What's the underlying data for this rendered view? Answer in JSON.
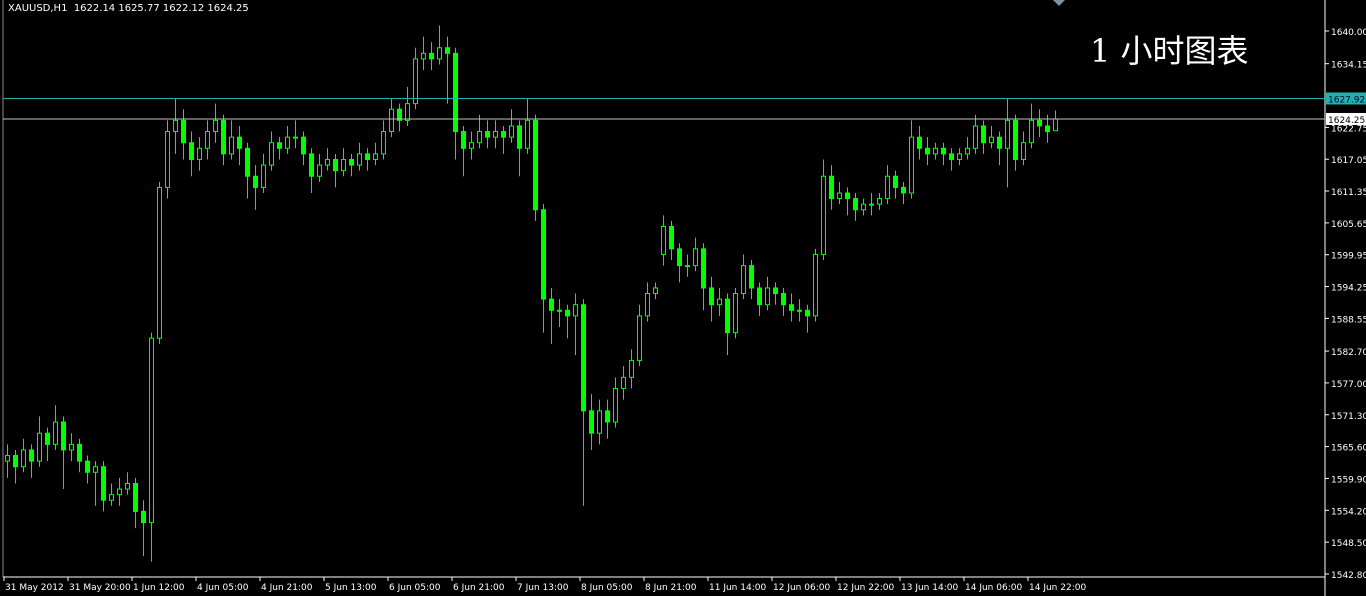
{
  "header": {
    "symbol": "XAUUSD,H1",
    "ohlc_text": "1622.14 1625.77 1622.12 1624.25"
  },
  "overlay_title": "1 小时图表",
  "colors": {
    "background": "#000000",
    "candle": "#00ff00",
    "axis": "#ffffff",
    "level_line": "#20b2aa",
    "bid_line": "#c0c0c0",
    "level_label_bg": "#20b2aa",
    "bid_label_bg": "#ffffff"
  },
  "chart_data": {
    "type": "candlestick",
    "symbol": "XAUUSD",
    "timeframe": "H1",
    "ylim": [
      1542.8,
      1640.0
    ],
    "y_tick_labels": [
      "1640.00",
      "1634.15",
      "1622.75",
      "1617.05",
      "1611.35",
      "1605.65",
      "1599.95",
      "1594.25",
      "1588.55",
      "1582.70",
      "1577.00",
      "1571.30",
      "1565.60",
      "1559.90",
      "1554.20",
      "1548.50",
      "1542.80"
    ],
    "x_tick_labels": [
      "31 May 2012",
      "31 May 20:00",
      "1 Jun 12:00",
      "4 Jun 05:00",
      "4 Jun 21:00",
      "5 Jun 13:00",
      "6 Jun 05:00",
      "6 Jun 21:00",
      "7 Jun 13:00",
      "8 Jun 05:00",
      "8 Jun 21:00",
      "11 Jun 14:00",
      "12 Jun 06:00",
      "12 Jun 22:00",
      "13 Jun 14:00",
      "14 Jun 06:00",
      "14 Jun 22:00"
    ],
    "horizontal_lines": [
      {
        "price": 1627.92,
        "label": "1627.92"
      },
      {
        "price": 1624.25,
        "label": "1624.25"
      }
    ],
    "ohlc": [
      [
        1563,
        1566,
        1560,
        1564
      ],
      [
        1564,
        1565,
        1559,
        1562
      ],
      [
        1562,
        1567,
        1561,
        1565
      ],
      [
        1565,
        1566,
        1560,
        1563
      ],
      [
        1563,
        1571,
        1562,
        1568
      ],
      [
        1568,
        1569,
        1563,
        1566
      ],
      [
        1566,
        1573,
        1565,
        1570
      ],
      [
        1570,
        1571,
        1558,
        1565
      ],
      [
        1565,
        1568,
        1563,
        1566
      ],
      [
        1566,
        1567,
        1561,
        1563
      ],
      [
        1563,
        1564,
        1559,
        1561
      ],
      [
        1561,
        1563,
        1555,
        1562
      ],
      [
        1562,
        1563,
        1554,
        1556
      ],
      [
        1556,
        1559,
        1555,
        1557
      ],
      [
        1557,
        1560,
        1555,
        1558
      ],
      [
        1558,
        1561,
        1557,
        1559
      ],
      [
        1559,
        1560,
        1551,
        1554
      ],
      [
        1554,
        1556,
        1546,
        1552
      ],
      [
        1552,
        1586,
        1545,
        1585
      ],
      [
        1585,
        1613,
        1584,
        1612
      ],
      [
        1612,
        1624,
        1610,
        1622
      ],
      [
        1622,
        1628,
        1618,
        1624
      ],
      [
        1624,
        1626,
        1617,
        1620
      ],
      [
        1620,
        1622,
        1614,
        1617
      ],
      [
        1617,
        1621,
        1615,
        1619
      ],
      [
        1619,
        1624,
        1617,
        1622
      ],
      [
        1622,
        1627,
        1620,
        1624
      ],
      [
        1624,
        1625,
        1616,
        1618
      ],
      [
        1618,
        1624,
        1617,
        1621
      ],
      [
        1621,
        1623,
        1616,
        1619
      ],
      [
        1619,
        1620,
        1610,
        1614
      ],
      [
        1614,
        1616,
        1608,
        1612
      ],
      [
        1612,
        1618,
        1611,
        1616
      ],
      [
        1616,
        1622,
        1615,
        1620
      ],
      [
        1620,
        1621,
        1617,
        1619
      ],
      [
        1619,
        1623,
        1618,
        1621
      ],
      [
        1621,
        1624,
        1619,
        1621
      ],
      [
        1621,
        1622,
        1616,
        1618
      ],
      [
        1618,
        1619,
        1611,
        1614
      ],
      [
        1614,
        1618,
        1613,
        1616
      ],
      [
        1616,
        1619,
        1615,
        1617
      ],
      [
        1617,
        1618,
        1612,
        1615
      ],
      [
        1615,
        1619,
        1614,
        1617
      ],
      [
        1617,
        1618,
        1614,
        1616
      ],
      [
        1616,
        1620,
        1615,
        1618
      ],
      [
        1618,
        1619,
        1615,
        1617
      ],
      [
        1617,
        1620,
        1616,
        1618
      ],
      [
        1618,
        1624,
        1617,
        1622
      ],
      [
        1622,
        1628,
        1621,
        1626
      ],
      [
        1626,
        1627,
        1622,
        1624
      ],
      [
        1624,
        1630,
        1623,
        1627
      ],
      [
        1627,
        1637,
        1626,
        1635
      ],
      [
        1635,
        1639,
        1633,
        1636
      ],
      [
        1636,
        1638,
        1633,
        1635
      ],
      [
        1635,
        1641,
        1634,
        1637
      ],
      [
        1637,
        1639,
        1627,
        1636
      ],
      [
        1636,
        1637,
        1617,
        1622
      ],
      [
        1622,
        1623,
        1614,
        1619
      ],
      [
        1619,
        1622,
        1617,
        1620
      ],
      [
        1620,
        1625,
        1619,
        1622
      ],
      [
        1622,
        1624,
        1619,
        1621
      ],
      [
        1621,
        1624,
        1619,
        1622
      ],
      [
        1622,
        1623,
        1618,
        1621
      ],
      [
        1621,
        1626,
        1620,
        1623
      ],
      [
        1623,
        1624,
        1614,
        1619
      ],
      [
        1619,
        1628,
        1618,
        1624
      ],
      [
        1624,
        1625,
        1606,
        1608
      ],
      [
        1608,
        1609,
        1586,
        1592
      ],
      [
        1592,
        1594,
        1584,
        1590
      ],
      [
        1590,
        1592,
        1587,
        1590
      ],
      [
        1590,
        1591,
        1585,
        1589
      ],
      [
        1589,
        1593,
        1582,
        1591
      ],
      [
        1591,
        1592,
        1555,
        1572
      ],
      [
        1572,
        1575,
        1565,
        1568
      ],
      [
        1568,
        1574,
        1566,
        1572
      ],
      [
        1572,
        1574,
        1567,
        1570
      ],
      [
        1570,
        1578,
        1569,
        1576
      ],
      [
        1576,
        1580,
        1574,
        1578
      ],
      [
        1578,
        1583,
        1576,
        1581
      ],
      [
        1581,
        1591,
        1580,
        1589
      ],
      [
        1589,
        1595,
        1588,
        1593
      ],
      [
        1593,
        1595,
        1592,
        1594
      ],
      [
        1600,
        1607,
        1598,
        1605
      ],
      [
        1605,
        1606,
        1599,
        1601
      ],
      [
        1601,
        1602,
        1595,
        1598
      ],
      [
        1598,
        1600,
        1596,
        1598
      ],
      [
        1598,
        1603,
        1597,
        1601
      ],
      [
        1601,
        1602,
        1590,
        1594
      ],
      [
        1594,
        1596,
        1588,
        1591
      ],
      [
        1591,
        1594,
        1589,
        1592
      ],
      [
        1592,
        1593,
        1582,
        1586
      ],
      [
        1586,
        1594,
        1585,
        1593
      ],
      [
        1593,
        1600,
        1592,
        1598
      ],
      [
        1598,
        1599,
        1592,
        1594
      ],
      [
        1594,
        1595,
        1589,
        1591
      ],
      [
        1591,
        1596,
        1590,
        1594
      ],
      [
        1594,
        1595,
        1591,
        1593
      ],
      [
        1593,
        1594,
        1589,
        1591
      ],
      [
        1591,
        1593,
        1588,
        1590
      ],
      [
        1590,
        1592,
        1588,
        1590
      ],
      [
        1590,
        1591,
        1586,
        1589
      ],
      [
        1589,
        1601,
        1588,
        1600
      ],
      [
        1600,
        1617,
        1599,
        1614
      ],
      [
        1614,
        1616,
        1608,
        1610
      ],
      [
        1610,
        1613,
        1609,
        1611
      ],
      [
        1611,
        1612,
        1607,
        1610
      ],
      [
        1610,
        1611,
        1606,
        1608
      ],
      [
        1608,
        1610,
        1607,
        1609
      ],
      [
        1609,
        1611,
        1607,
        1609
      ],
      [
        1609,
        1611,
        1608,
        1610
      ],
      [
        1610,
        1616,
        1609,
        1614
      ],
      [
        1614,
        1615,
        1610,
        1612
      ],
      [
        1612,
        1613,
        1609,
        1611
      ],
      [
        1611,
        1624,
        1610,
        1621
      ],
      [
        1621,
        1623,
        1617,
        1619
      ],
      [
        1619,
        1621,
        1616,
        1618
      ],
      [
        1618,
        1620,
        1617,
        1619
      ],
      [
        1619,
        1620,
        1616,
        1618
      ],
      [
        1618,
        1619,
        1615,
        1617
      ],
      [
        1617,
        1619,
        1616,
        1618
      ],
      [
        1618,
        1621,
        1617,
        1619
      ],
      [
        1619,
        1625,
        1618,
        1623
      ],
      [
        1623,
        1624,
        1618,
        1620
      ],
      [
        1620,
        1623,
        1619,
        1621
      ],
      [
        1621,
        1622,
        1616,
        1619
      ],
      [
        1619,
        1627.9,
        1612,
        1624
      ],
      [
        1624,
        1625,
        1615,
        1617
      ],
      [
        1617,
        1622,
        1616,
        1620
      ],
      [
        1620,
        1627,
        1619,
        1624
      ],
      [
        1624,
        1626,
        1621,
        1623
      ],
      [
        1623,
        1625,
        1620,
        1622
      ],
      [
        1622.14,
        1625.77,
        1622.12,
        1624.25
      ]
    ]
  }
}
